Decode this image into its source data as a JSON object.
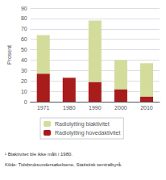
{
  "chart_data": {
    "type": "bar",
    "stacked": true,
    "categories": [
      "1971",
      "1980",
      "1990",
      "2000",
      "2010"
    ],
    "series": [
      {
        "name": "Radiolytting hovedaktivitet",
        "color": "#a81c1c",
        "values": [
          27,
          23,
          19,
          12,
          5
        ]
      },
      {
        "name": "Radiolytting biaktivitet",
        "color": "#d4dc9b",
        "values": [
          37,
          0,
          59,
          28,
          32
        ]
      }
    ],
    "ylabel": "Prosent",
    "ylim": [
      0,
      90
    ],
    "yticks": [
      0,
      10,
      20,
      30,
      40,
      50,
      60,
      70,
      80,
      90
    ],
    "grid": true,
    "legend": "lower left",
    "annotations": [
      "¹ Biaktivitet ble ikke målt i 1980.",
      "Kilde: Tidsbruksundersøkelsene, Statistisk sentralbyrå."
    ]
  }
}
